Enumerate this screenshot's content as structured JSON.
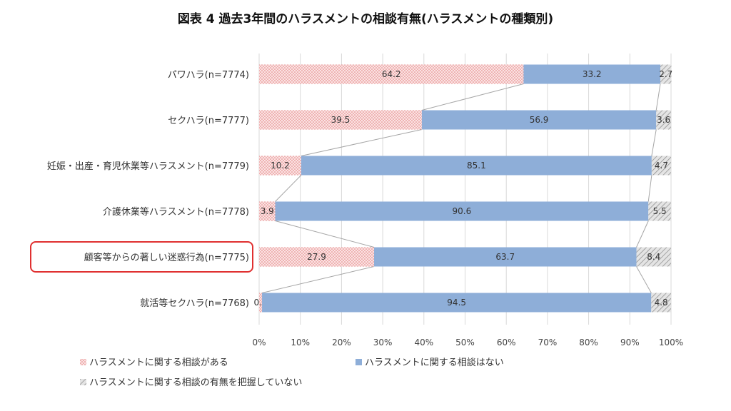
{
  "chart_data": {
    "type": "bar",
    "orientation": "horizontal",
    "stacked": true,
    "percent": true,
    "title": "図表 4 過去3年間のハラスメントの相談有無(ハラスメントの種類別)",
    "categories": [
      "パワハラ(n=7774)",
      "セクハラ(n=7777)",
      "妊娠・出産・育児休業等ハラスメント(n=7779)",
      "介護休業等ハラスメント(n=7778)",
      "顧客等からの著しい迷惑行為(n=7775)",
      "就活等セクハラ(n=7768)"
    ],
    "highlighted_category_index": 4,
    "series": [
      {
        "name": "ハラスメントに関する相談がある",
        "values": [
          64.2,
          39.5,
          10.2,
          3.9,
          27.9,
          0.7
        ],
        "color": "#f4b6b6",
        "pattern": "dots"
      },
      {
        "name": "ハラスメントに関する相談はない",
        "values": [
          33.2,
          56.9,
          85.1,
          90.6,
          63.7,
          94.5
        ],
        "color": "#8eaed8",
        "pattern": "solid"
      },
      {
        "name": "ハラスメントに関する相談の有無を把握していない",
        "values": [
          2.7,
          3.6,
          4.7,
          5.5,
          8.4,
          4.8
        ],
        "color": "#c8c8c8",
        "pattern": "hatch"
      }
    ],
    "xlim": [
      0,
      100
    ],
    "x_ticks": [
      "0%",
      "10%",
      "20%",
      "30%",
      "40%",
      "50%",
      "60%",
      "70%",
      "80%",
      "90%",
      "100%"
    ],
    "grid": true,
    "legend_position": "bottom-left",
    "highlight_color": "#e03030"
  }
}
